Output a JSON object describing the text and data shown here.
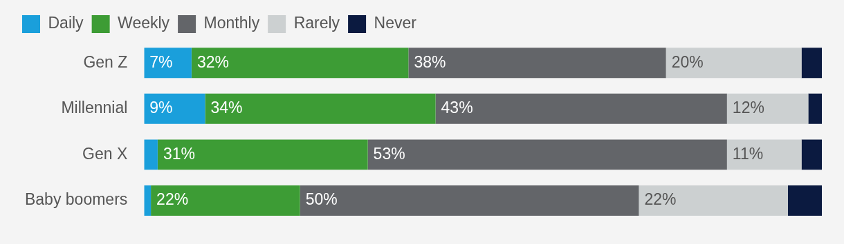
{
  "chart_data": {
    "type": "bar",
    "orientation": "horizontal",
    "stacked": true,
    "categories": [
      "Gen Z",
      "Millennial",
      "Gen X",
      "Baby boomers"
    ],
    "xlim": [
      0,
      100
    ],
    "tick_labels": "y",
    "legend": "top left",
    "series": [
      {
        "name": "Daily",
        "color": "#1a9fdb",
        "values": [
          7,
          9,
          2,
          1
        ],
        "value_labels": [
          "7%",
          "9%",
          null,
          null
        ]
      },
      {
        "name": "Weekly",
        "color": "#3d9c35",
        "values": [
          32,
          34,
          31,
          22
        ],
        "value_labels": [
          "32%",
          "34%",
          "31%",
          "22%"
        ]
      },
      {
        "name": "Monthly",
        "color": "#636569",
        "values": [
          38,
          43,
          53,
          50
        ],
        "value_labels": [
          "38%",
          "43%",
          "53%",
          "50%"
        ]
      },
      {
        "name": "Rarely",
        "color": "#ccd0d1",
        "values": [
          20,
          12,
          11,
          22
        ],
        "value_labels": [
          "20%",
          "12%",
          "11%",
          "22%"
        ]
      },
      {
        "name": "Never",
        "color": "#0b1a40",
        "values": [
          3,
          2,
          3,
          5
        ],
        "value_labels": [
          null,
          null,
          null,
          null
        ]
      }
    ]
  }
}
